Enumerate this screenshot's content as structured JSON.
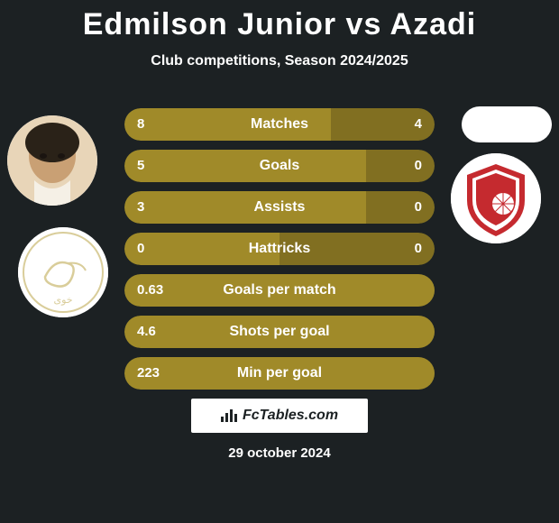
{
  "title": "Edmilson Junior vs Azadi",
  "subtitle": "Club competitions, Season 2024/2025",
  "date": "29 october 2024",
  "footer_brand": "FcTables.com",
  "colors": {
    "background": "#1c2123",
    "row_base": "#39402b",
    "p1_fill": "#a08a29",
    "p2_fill": "#816f21",
    "text": "#ffffff",
    "title_fontsize": 34,
    "subtitle_fontsize": 16,
    "label_fontsize": 16,
    "value_fontsize": 15
  },
  "rows": [
    {
      "label": "Matches",
      "left": "8",
      "right": "4",
      "left_pct": 66.7,
      "right_pct": 33.3
    },
    {
      "label": "Goals",
      "left": "5",
      "right": "0",
      "left_pct": 78.0,
      "right_pct": 22.0
    },
    {
      "label": "Assists",
      "left": "3",
      "right": "0",
      "left_pct": 78.0,
      "right_pct": 22.0
    },
    {
      "label": "Hattricks",
      "left": "0",
      "right": "0",
      "left_pct": 50.0,
      "right_pct": 50.0
    },
    {
      "label": "Goals per match",
      "left": "0.63",
      "right": "",
      "left_pct": 100,
      "right_pct": 0
    },
    {
      "label": "Shots per goal",
      "left": "4.6",
      "right": "",
      "left_pct": 100,
      "right_pct": 0
    },
    {
      "label": "Min per goal",
      "left": "223",
      "right": "",
      "left_pct": 100,
      "right_pct": 0
    }
  ],
  "logos": {
    "p1_crest_color": "#d9cd9a",
    "p2_crest_color": "#c52a2f"
  }
}
